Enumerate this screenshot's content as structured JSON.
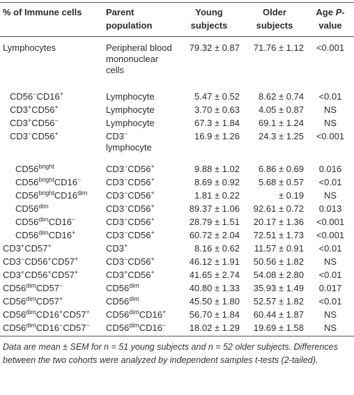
{
  "header": [
    "% of Immune cells",
    "Parent population",
    "Young subjects",
    "Older subjects",
    [
      "Age ",
      "P",
      "-value"
    ]
  ],
  "rows": [
    {
      "level": 0,
      "name": [
        "Lymphocytes"
      ],
      "parent": [
        "Peripheral blood mononuclear cells"
      ],
      "young": "79.32 ± 0.87",
      "older": "71.76 ± 1.12",
      "p": "<0.001"
    },
    {
      "level": 1,
      "name": [
        "CD56",
        "−",
        "CD16",
        "+"
      ],
      "parent": [
        "Lymphocyte"
      ],
      "young": "5.47 ± 0.52",
      "older": "8.62 ± 0.74",
      "p": "<0.01"
    },
    {
      "level": 1,
      "name": [
        "CD3",
        "+",
        "CD56",
        "+"
      ],
      "parent": [
        "Lymphocyte"
      ],
      "young": "3.70 ± 0.63",
      "older": "4.05 ± 0.87",
      "p": "NS"
    },
    {
      "level": 1,
      "name": [
        "CD3",
        "+",
        "CD56",
        "−"
      ],
      "parent": [
        "Lymphocyte"
      ],
      "young": "67.3 ± 1.84",
      "older": "69.1 ± 1.24",
      "p": "NS"
    },
    {
      "level": 1,
      "name": [
        "CD3",
        "−",
        "CD56",
        "+"
      ],
      "parent": [
        "CD3",
        "−",
        " lymphocyte"
      ],
      "young": "16.9 ± 1.26",
      "older": "24.3 ± 1.25",
      "p": "<0.001"
    },
    {
      "level": 2,
      "name": [
        "CD56",
        "bright"
      ],
      "parent": [
        "CD3",
        "−",
        "CD56",
        "+"
      ],
      "young": "9.88 ± 1.02",
      "older": "6.86 ± 0.69",
      "p": "0.016"
    },
    {
      "level": 2,
      "name": [
        "CD56",
        "bright",
        "CD16",
        "−"
      ],
      "parent": [
        "CD3",
        "−",
        "CD56",
        "+"
      ],
      "young": "8.69 ± 0.92",
      "older": "5.68 ± 0.57",
      "p": "<0.01"
    },
    {
      "level": 2,
      "name": [
        "CD56",
        "bright",
        "CD16",
        "dim"
      ],
      "parent": [
        "CD3",
        "−",
        "CD56",
        "+"
      ],
      "young": "1.81 ± 0.22",
      "older": "± 0.19",
      "p": "NS"
    },
    {
      "level": 2,
      "name": [
        "CD56",
        "dim"
      ],
      "parent": [
        "CD3",
        "−",
        "CD56",
        "+"
      ],
      "young": "89.37 ± 1.06",
      "older": "92.61 ± 0.72",
      "p": "0.013"
    },
    {
      "level": 2,
      "name": [
        "CD56",
        "dim",
        "CD16",
        "−"
      ],
      "parent": [
        "CD3",
        "−",
        "CD56",
        "+"
      ],
      "young": "28.79 ± 1.51",
      "older": "20.17 ± 1.36",
      "p": "<0.001"
    },
    {
      "level": 2,
      "name": [
        "CD56",
        "dim",
        "CD16",
        "+"
      ],
      "parent": [
        "CD3",
        "−",
        "CD56",
        "+"
      ],
      "young": "60.72 ± 2.04",
      "older": "72.51 ± 1.73",
      "p": "<0.001"
    },
    {
      "level": 0,
      "name": [
        "CD3",
        "+",
        "CD57",
        "+"
      ],
      "parent": [
        "CD3",
        "+"
      ],
      "young": "8.16 ± 0.62",
      "older": "11.57 ± 0.91",
      "p": "<0.01"
    },
    {
      "level": 0,
      "name": [
        "CD3",
        "−",
        "CD56",
        "+",
        "CD57",
        "+"
      ],
      "parent": [
        "CD3",
        "−",
        "CD56",
        "+"
      ],
      "young": "46.12 ± 1.91",
      "older": "50.56 ± 1.82",
      "p": "NS"
    },
    {
      "level": 0,
      "name": [
        "CD3",
        "+",
        "CD56",
        "+",
        "CD57",
        "+"
      ],
      "parent": [
        "CD3",
        "+",
        "CD56",
        "+"
      ],
      "young": "41.65 ± 2.74",
      "older": "54.08 ± 2.80",
      "p": "<0.01"
    },
    {
      "level": 0,
      "name": [
        "CD56",
        "dim",
        "CD57",
        "−"
      ],
      "parent": [
        "CD56",
        "dim"
      ],
      "young": "40.80 ± 1.33",
      "older": "35.93 ± 1.49",
      "p": "0.017"
    },
    {
      "level": 0,
      "name": [
        "CD56",
        "dim",
        "CD57",
        "+"
      ],
      "parent": [
        "CD56",
        "dim"
      ],
      "young": "45.50 ± 1.80",
      "older": "52.57 ± 1.82",
      "p": "<0.01"
    },
    {
      "level": 0,
      "name": [
        "CD56",
        "dim",
        "CD16",
        "+",
        "CD57",
        "+"
      ],
      "parent": [
        "CD56",
        "dim",
        "CD16",
        "+"
      ],
      "young": "56.70 ± 1.84",
      "older": "60.44 ± 1.87",
      "p": "NS"
    },
    {
      "level": 0,
      "name": [
        "CD56",
        "dim",
        "CD16",
        "−",
        "CD57",
        "−"
      ],
      "parent": [
        "CD56",
        "dim",
        "CD16",
        "−"
      ],
      "young": "18.02 ± 1.29",
      "older": "19.69 ± 1.58",
      "p": "NS"
    }
  ],
  "footnote": "Data are mean ± SEM for n = 51 young subjects and n = 52 older subjects. Differences between the two cohorts were analyzed by independent samples t-tests (2-tailed)."
}
